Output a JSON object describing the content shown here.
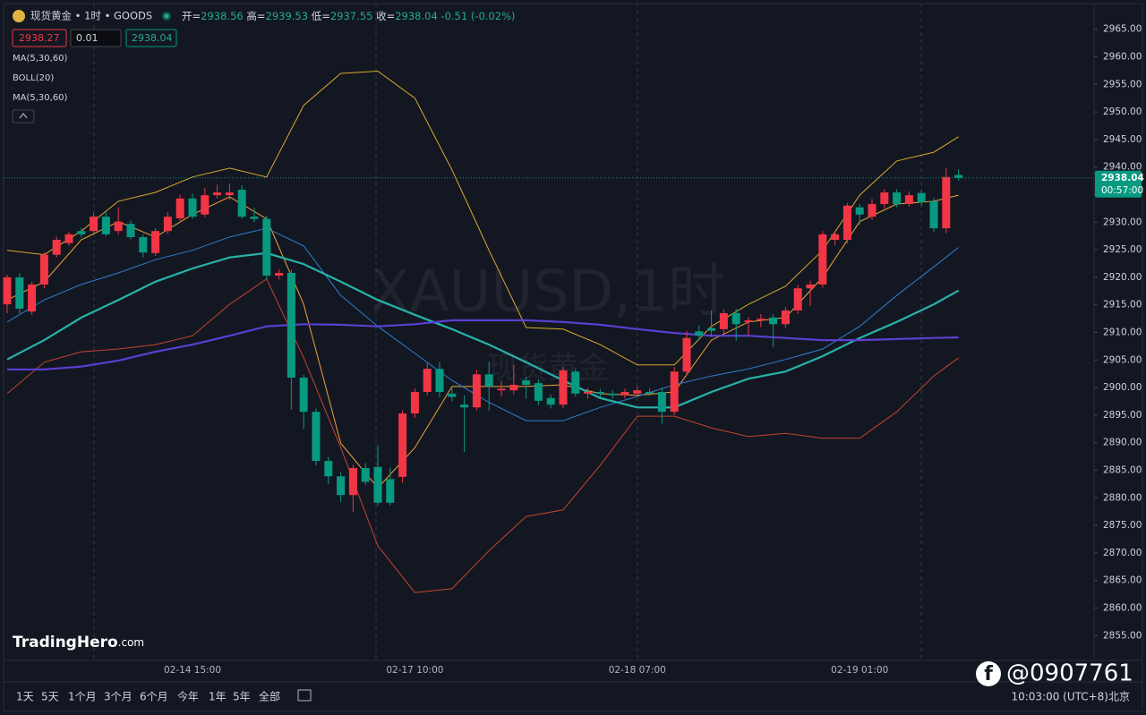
{
  "chart_data": {
    "type": "candlestick",
    "categories": [
      null,
      null,
      null,
      null,
      null,
      null,
      null,
      null,
      null,
      null,
      null,
      null,
      null,
      null,
      null,
      "02-14 15:00",
      null,
      null,
      null,
      null,
      null,
      null,
      null,
      null,
      null,
      null,
      null,
      null,
      null,
      null,
      null,
      null,
      null,
      "02-17 10:00",
      null,
      null,
      null,
      null,
      null,
      null,
      null,
      null,
      null,
      null,
      null,
      null,
      null,
      null,
      null,
      null,
      null,
      "02-18 07:00",
      null,
      null,
      null,
      null,
      null,
      null,
      null,
      null,
      null,
      null,
      null,
      null,
      null,
      null,
      null,
      null,
      null,
      "02-19 01:00",
      null,
      null,
      null,
      null,
      null,
      null,
      null,
      null
    ],
    "open": [
      2915.1,
      2920.0,
      2913.8,
      2918.7,
      2924.1,
      2926.2,
      2928.4,
      2928.4,
      2931.0,
      2928.4,
      2929.7,
      2927.3,
      2924.4,
      2928.4,
      2930.7,
      2934.3,
      2931.4,
      2934.9,
      2934.9,
      2935.9,
      2931.0,
      2930.6,
      2920.3,
      2920.8,
      2901.8,
      2895.6,
      2886.7,
      2883.9,
      2880.5,
      2885.4,
      2885.6,
      2883.4,
      2883.8,
      2895.3,
      2899.2,
      2903.4,
      2898.9,
      2896.9,
      2896.4,
      2902.4,
      2899.5,
      2899.5,
      2901.3,
      2900.8,
      2898.1,
      2896.9,
      2902.9,
      2898.9,
      2899.2,
      2898.9,
      2898.6,
      2898.9,
      2899.2,
      2899.2,
      2895.6,
      2902.9,
      2910.2,
      2910.8,
      2910.6,
      2913.5,
      2911.9,
      2912.2,
      2912.7,
      2911.5,
      2914.0,
      2918.0,
      2918.7,
      2926.8,
      2926.8,
      2932.7,
      2931.0,
      2933.3,
      2935.4,
      2933.3,
      2935.3,
      2933.8,
      2928.9,
      2938.56
    ],
    "high": [
      2920.5,
      2920.8,
      2919.2,
      2924.6,
      2927.4,
      2928.3,
      2929.0,
      2931.6,
      2931.9,
      2932.7,
      2930.3,
      2927.8,
      2928.9,
      2931.8,
      2935.0,
      2935.2,
      2936.2,
      2936.8,
      2937.0,
      2936.7,
      2932.6,
      2931.2,
      2921.5,
      2921.4,
      2902.3,
      2896.2,
      2887.4,
      2884.6,
      2886.0,
      2886.3,
      2889.5,
      2885.5,
      2895.9,
      2899.8,
      2904.5,
      2904.6,
      2900.2,
      2898.6,
      2903.2,
      2904.7,
      2901.2,
      2904.1,
      2902.0,
      2901.5,
      2898.7,
      2903.7,
      2903.5,
      2899.9,
      2899.8,
      2899.5,
      2899.8,
      2900.2,
      2899.9,
      2900.0,
      2903.7,
      2910.3,
      2911.3,
      2914.0,
      2914.2,
      2914.3,
      2912.8,
      2913.3,
      2913.3,
      2914.6,
      2918.6,
      2919.4,
      2928.4,
      2928.4,
      2933.5,
      2933.3,
      2934.2,
      2936.0,
      2936.0,
      2935.6,
      2935.9,
      2934.4,
      2939.8,
      2939.53
    ],
    "low": [
      2913.5,
      2913.4,
      2913.2,
      2918.0,
      2923.6,
      2925.7,
      2927.2,
      2927.9,
      2927.4,
      2927.8,
      2926.9,
      2923.6,
      2923.9,
      2927.9,
      2930.2,
      2930.6,
      2930.9,
      2934.3,
      2934.0,
      2930.6,
      2930.0,
      2919.6,
      2919.6,
      2896.0,
      2892.5,
      2885.9,
      2882.5,
      2879.2,
      2877.5,
      2882.3,
      2878.6,
      2878.6,
      2882.7,
      2894.5,
      2898.6,
      2898.3,
      2897.5,
      2888.3,
      2895.9,
      2895.8,
      2898.4,
      2898.8,
      2898.0,
      2896.8,
      2896.2,
      2896.3,
      2898.3,
      2898.0,
      2898.2,
      2897.9,
      2898.0,
      2898.3,
      2898.5,
      2893.4,
      2895.0,
      2902.2,
      2908.6,
      2909.2,
      2909.8,
      2908.5,
      2909.5,
      2911.0,
      2907.3,
      2910.9,
      2913.4,
      2914.8,
      2918.1,
      2925.8,
      2926.2,
      2929.5,
      2930.4,
      2932.5,
      2932.7,
      2932.8,
      2933.0,
      2928.2,
      2928.0,
      2937.55
    ],
    "close": [
      2920.0,
      2914.3,
      2918.7,
      2924.1,
      2926.8,
      2927.8,
      2927.8,
      2931.0,
      2927.8,
      2930.1,
      2927.3,
      2924.5,
      2928.4,
      2931.0,
      2934.3,
      2931.0,
      2934.9,
      2935.4,
      2935.4,
      2931.0,
      2930.6,
      2920.3,
      2920.8,
      2901.8,
      2895.6,
      2886.7,
      2883.9,
      2880.5,
      2885.4,
      2882.9,
      2879.1,
      2879.1,
      2895.3,
      2899.2,
      2903.4,
      2899.2,
      2898.3,
      2896.4,
      2902.4,
      2900.2,
      2899.8,
      2900.5,
      2900.5,
      2897.6,
      2896.9,
      2903.1,
      2898.9,
      2899.2,
      2898.9,
      2898.6,
      2899.2,
      2899.5,
      2898.9,
      2895.6,
      2902.9,
      2909.0,
      2909.4,
      2910.3,
      2913.5,
      2911.5,
      2912.2,
      2912.5,
      2911.5,
      2914.0,
      2918.0,
      2918.7,
      2927.8,
      2927.8,
      2933.0,
      2931.4,
      2933.3,
      2935.4,
      2933.3,
      2934.9,
      2933.6,
      2928.9,
      2938.2,
      2938.04
    ],
    "up_color": "#f23645",
    "down_color": "#089981",
    "lines": [
      {
        "color": "#d9aa2b",
        "width": 1,
        "x": [
          0,
          3,
          6,
          9,
          12,
          15,
          18,
          21,
          24,
          27,
          30,
          33,
          36,
          39,
          42,
          45,
          48,
          51,
          54,
          57,
          60,
          63,
          66,
          69,
          72,
          75,
          77
        ],
        "values": [
          2924.9,
          2924.1,
          2928.4,
          2933.8,
          2935.4,
          2938.2,
          2939.8,
          2938.2,
          2951.2,
          2957.0,
          2957.4,
          2952.5,
          2939.5,
          2924.9,
          2910.9,
          2910.6,
          2907.8,
          2904.1,
          2904.1,
          2911.1,
          2915.1,
          2918.4,
          2924.9,
          2934.9,
          2941.1,
          2942.7,
          2945.5
        ]
      },
      {
        "color": "#c8432f",
        "width": 1,
        "x": [
          0,
          3,
          6,
          9,
          12,
          15,
          18,
          21,
          24,
          27,
          30,
          33,
          36,
          39,
          42,
          45,
          48,
          51,
          54,
          57,
          60,
          63,
          66,
          69,
          72,
          75,
          77
        ],
        "values": [
          2898.9,
          2904.6,
          2906.5,
          2907.0,
          2907.8,
          2909.4,
          2915.1,
          2919.7,
          2905.4,
          2889.1,
          2871.3,
          2862.8,
          2863.5,
          2870.4,
          2876.6,
          2877.8,
          2885.9,
          2894.8,
          2894.8,
          2892.7,
          2891.1,
          2891.7,
          2890.8,
          2890.8,
          2895.6,
          2902.1,
          2905.4
        ]
      },
      {
        "color": "#f0a33a",
        "width": 1,
        "x": [
          0,
          3,
          6,
          9,
          12,
          15,
          18,
          21,
          24,
          27,
          30,
          33,
          36,
          39,
          42,
          45,
          48,
          51,
          54,
          57,
          60,
          63,
          66,
          69,
          72,
          75,
          77
        ],
        "values": [
          2915.9,
          2919.2,
          2926.8,
          2930.1,
          2927.3,
          2931.4,
          2934.6,
          2930.6,
          2915.1,
          2889.9,
          2881.8,
          2889.1,
          2900.2,
          2900.2,
          2900.2,
          2900.5,
          2898.9,
          2898.6,
          2899.2,
          2908.6,
          2911.9,
          2912.7,
          2920.0,
          2930.1,
          2933.3,
          2933.8,
          2934.9
        ]
      },
      {
        "color": "#2e7ecf",
        "width": 1,
        "x": [
          0,
          3,
          6,
          9,
          12,
          15,
          18,
          21,
          24,
          27,
          30,
          33,
          36,
          39,
          42,
          45,
          48,
          51,
          54,
          57,
          60,
          63,
          66,
          69,
          72,
          75,
          77
        ],
        "values": [
          2911.9,
          2915.9,
          2918.7,
          2920.8,
          2923.2,
          2924.9,
          2927.3,
          2928.9,
          2925.7,
          2916.7,
          2911.1,
          2906.2,
          2901.3,
          2897.3,
          2894.0,
          2894.0,
          2896.4,
          2898.4,
          2900.5,
          2902.1,
          2903.4,
          2905.1,
          2907.0,
          2911.1,
          2916.7,
          2921.9,
          2925.4
        ]
      },
      {
        "color": "#26b3a8",
        "width": 2.2,
        "x": [
          0,
          3,
          6,
          9,
          12,
          15,
          18,
          21,
          24,
          27,
          30,
          33,
          36,
          39,
          42,
          45,
          48,
          51,
          54,
          57,
          60,
          63,
          66,
          69,
          72,
          75,
          77
        ],
        "values": [
          2905.1,
          2908.6,
          2912.7,
          2915.9,
          2919.2,
          2921.6,
          2923.6,
          2924.4,
          2922.4,
          2919.2,
          2915.9,
          2913.2,
          2910.6,
          2907.8,
          2904.6,
          2901.3,
          2898.1,
          2896.4,
          2896.4,
          2899.2,
          2901.6,
          2902.9,
          2905.7,
          2909.0,
          2911.9,
          2915.1,
          2917.6
        ]
      },
      {
        "color": "#5b3fd1",
        "width": 2.2,
        "x": [
          0,
          3,
          6,
          9,
          12,
          15,
          18,
          21,
          24,
          27,
          30,
          33,
          36,
          39,
          42,
          45,
          48,
          51,
          54,
          57,
          60,
          63,
          66,
          69,
          72,
          75,
          77
        ],
        "values": [
          2903.3,
          2903.3,
          2903.8,
          2904.9,
          2906.5,
          2907.8,
          2909.4,
          2911.1,
          2911.5,
          2911.4,
          2911.1,
          2911.5,
          2912.2,
          2912.2,
          2912.2,
          2911.9,
          2911.4,
          2910.6,
          2909.9,
          2909.4,
          2909.4,
          2909.0,
          2908.6,
          2908.6,
          2908.8,
          2909.0,
          2909.1
        ]
      }
    ],
    "ylim": [
      2850.5,
      2969.5
    ],
    "yticks": [
      {
        "value": 2855,
        "label": "2855.00"
      },
      {
        "value": 2860,
        "label": "2860.00"
      },
      {
        "value": 2865,
        "label": "2865.00"
      },
      {
        "value": 2870,
        "label": "2870.00"
      },
      {
        "value": 2875,
        "label": "2875.00"
      },
      {
        "value": 2880,
        "label": "2880.00"
      },
      {
        "value": 2885,
        "label": "2885.00"
      },
      {
        "value": 2890,
        "label": "2890.00"
      },
      {
        "value": 2895,
        "label": "2895.00"
      },
      {
        "value": 2900,
        "label": "2900.00"
      },
      {
        "value": 2905,
        "label": "2905.00"
      },
      {
        "value": 2910,
        "label": "2910.00"
      },
      {
        "value": 2915,
        "label": "2915.00"
      },
      {
        "value": 2920,
        "label": "2920.00"
      },
      {
        "value": 2925,
        "label": "2925.00"
      },
      {
        "value": 2930,
        "label": "2930.00"
      },
      {
        "value": 2935,
        "label": "2935.00"
      },
      {
        "value": 2940,
        "label": "2940.00"
      },
      {
        "value": 2945,
        "label": "2945.00"
      },
      {
        "value": 2950,
        "label": "2950.00"
      },
      {
        "value": 2955,
        "label": "2955.00"
      },
      {
        "value": 2960,
        "label": "2960.00"
      },
      {
        "value": 2965,
        "label": "2965.00"
      }
    ],
    "grid": false,
    "last_price": 2938.04,
    "countdown": "00:57:00"
  },
  "ui": {
    "symbol": "现货黄金 • 1时 • GOODS",
    "ohlc": [
      {
        "label": "开=",
        "value": "2938.56"
      },
      {
        "label": "高=",
        "value": "2939.53"
      },
      {
        "label": "低=",
        "value": "2937.55"
      },
      {
        "label": "收=",
        "value": "2938.04"
      }
    ],
    "change": "-0.51",
    "change_pct": "(-0.02%)",
    "inputs": [
      "2938.27",
      "0.01",
      "2938.04"
    ],
    "indicators": [
      "MA(5,30,60)",
      "BOLL(20)",
      "MA(5,30,60)"
    ],
    "watermark": "XAUUSD,1时",
    "watermark_sub": "现货黄金",
    "logo": "TradingHero",
    "logo_suffix": ".com",
    "ranges": [
      "1天",
      "5天",
      "1个月",
      "3个月",
      "6个月",
      "今年",
      "1年",
      "5年",
      "全部"
    ],
    "clock": "10:03:00 (UTC+8)北京",
    "social": "@0907761"
  }
}
